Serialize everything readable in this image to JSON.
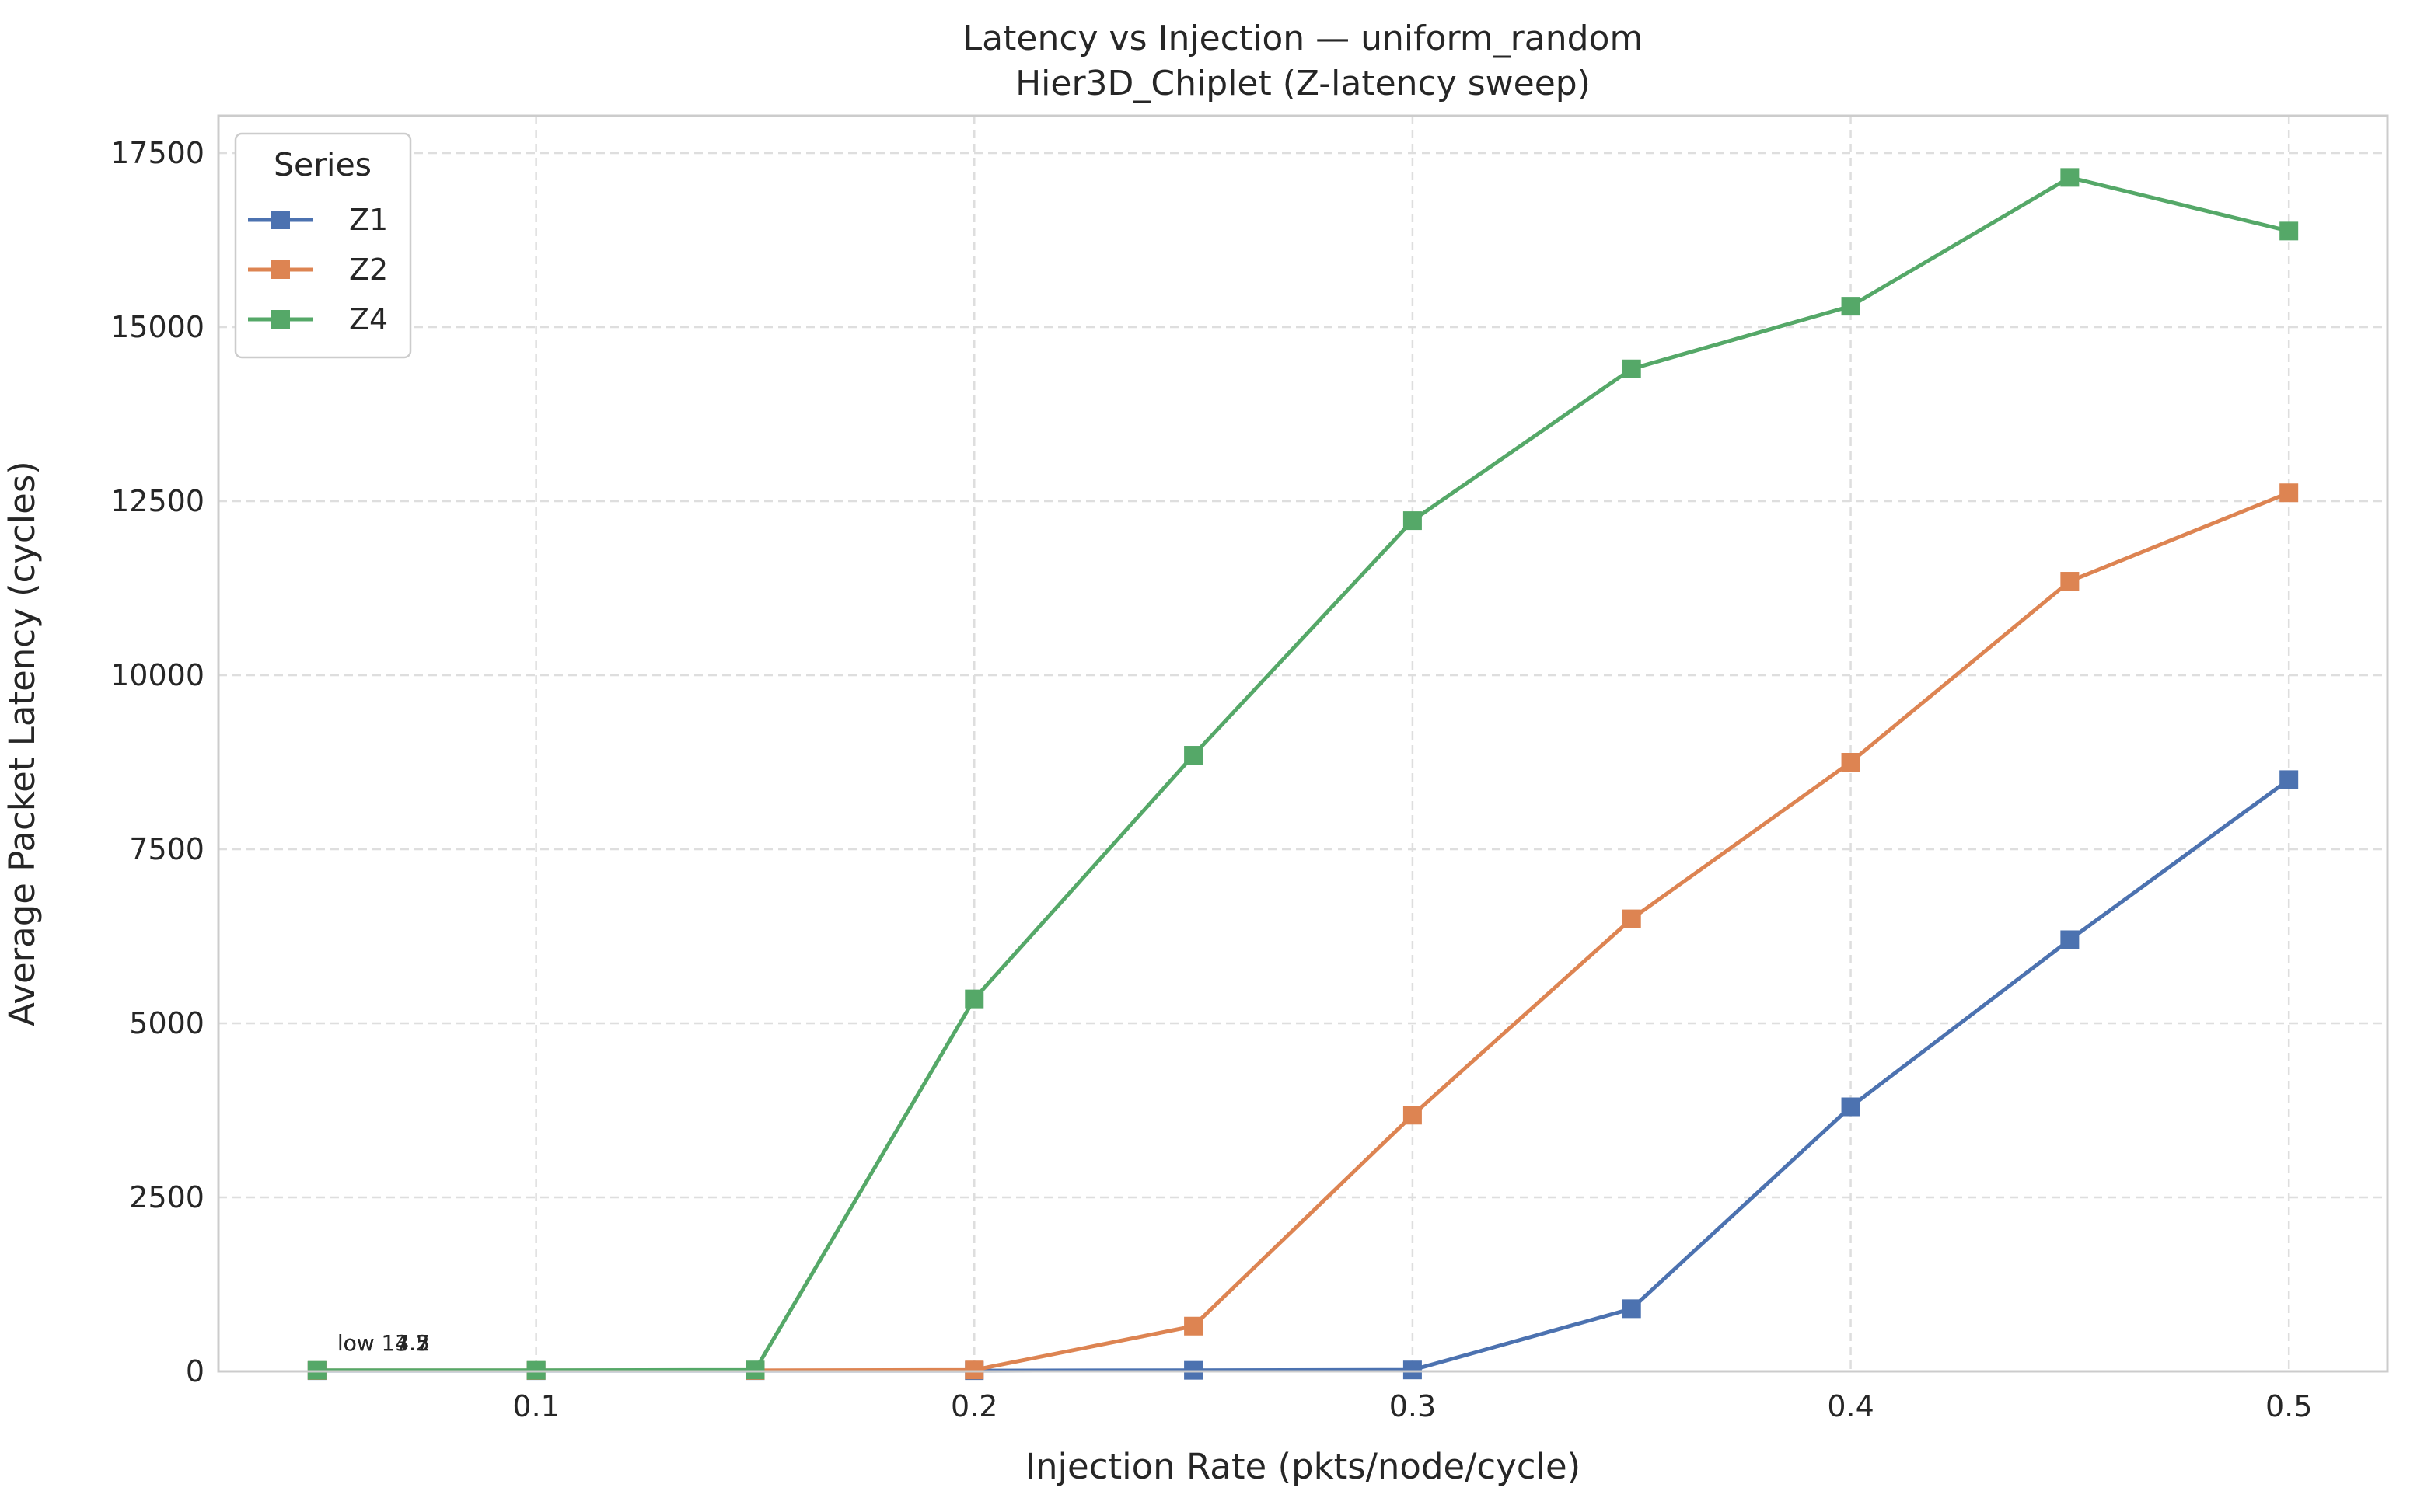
{
  "chart_data": {
    "type": "line",
    "title": "Latency vs Injection — uniform_random",
    "subtitle": "Hier3D_Chiplet (Z-latency sweep)",
    "xlabel": "Injection Rate (pkts/node/cycle)",
    "ylabel": "Average Packet Latency (cycles)",
    "xlim": [
      0.0275,
      0.5225
    ],
    "ylim": [
      0,
      17500
    ],
    "x_ticks": [
      0.1,
      0.2,
      0.3,
      0.4,
      0.5
    ],
    "x_tick_labels": [
      "0.1",
      "0.2",
      "0.3",
      "0.4",
      "0.5"
    ],
    "y_ticks": [
      0,
      2500,
      5000,
      7500,
      10000,
      12500,
      15000,
      17500
    ],
    "y_tick_labels": [
      "0",
      "2500",
      "5000",
      "7500",
      "10000",
      "12500",
      "15000",
      "17500"
    ],
    "grid": true,
    "marker": "square",
    "legend": {
      "title": "Series",
      "placement": "top-left"
    },
    "x": [
      0.05,
      0.1,
      0.15,
      0.2,
      0.25,
      0.3,
      0.35,
      0.4,
      0.45,
      0.5
    ],
    "series": [
      {
        "name": "Z1",
        "color": "#4c72b0",
        "values": [
          10,
          10,
          10,
          10,
          15,
          20,
          900,
          3800,
          6200,
          8500
        ]
      },
      {
        "name": "Z2",
        "color": "#dd8452",
        "values": [
          12,
          12,
          12,
          20,
          650,
          3680,
          6500,
          8750,
          11350,
          12620
        ]
      },
      {
        "name": "Z4",
        "color": "#55a868",
        "values": [
          15,
          15,
          20,
          5350,
          8850,
          12220,
          14400,
          15300,
          17150,
          16380
        ]
      }
    ],
    "annotations": [
      {
        "text": "low 14.2",
        "x": 0.05,
        "y": 10
      },
      {
        "text": "low 13.5",
        "x": 0.05,
        "y": 10
      },
      {
        "text": "low 17.7",
        "x": 0.05,
        "y": 10
      }
    ]
  }
}
